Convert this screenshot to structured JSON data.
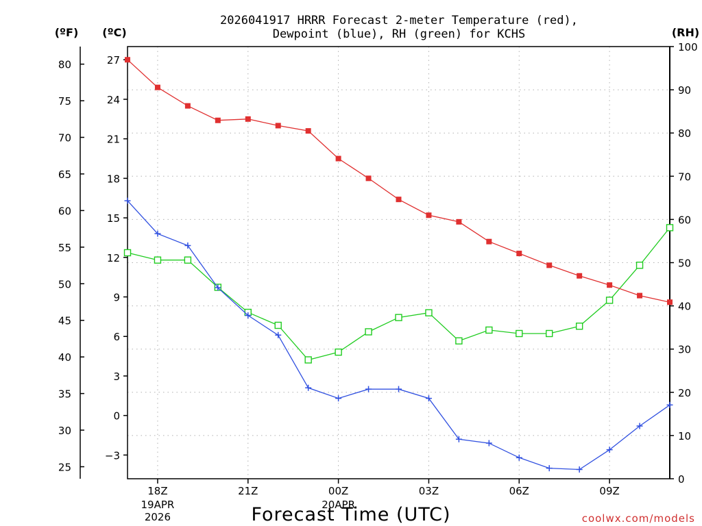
{
  "chart_data": {
    "type": "line",
    "title_line1": "2026041917 HRRR Forecast 2-meter Temperature (red),",
    "title_line2": "Dewpoint (blue), RH (green) for KCHS",
    "xlabel": "Forecast Time (UTC)",
    "watermark": "coolwx.com/models",
    "axis_headers": {
      "fahrenheit": "(ºF)",
      "celsius": "(ºC)",
      "rh": "(RH)"
    },
    "x": [
      17,
      18,
      19,
      20,
      21,
      22,
      23,
      24,
      25,
      26,
      27,
      28,
      29,
      30,
      31,
      32,
      33,
      34,
      35
    ],
    "xlim": [
      17,
      35
    ],
    "x_ticks": [
      {
        "x": 18,
        "label": "18Z",
        "sub1": "19APR",
        "sub2": "2026"
      },
      {
        "x": 21,
        "label": "21Z",
        "sub1": "",
        "sub2": ""
      },
      {
        "x": 24,
        "label": "00Z",
        "sub1": "20APR",
        "sub2": ""
      },
      {
        "x": 27,
        "label": "03Z",
        "sub1": "",
        "sub2": ""
      },
      {
        "x": 30,
        "label": "06Z",
        "sub1": "",
        "sub2": ""
      },
      {
        "x": 33,
        "label": "09Z",
        "sub1": "",
        "sub2": ""
      }
    ],
    "ylim_celsius": [
      -4.8,
      28.0
    ],
    "ylim_rh": [
      0,
      100
    ],
    "celsius_ticks": [
      "27",
      "24",
      "21",
      "18",
      "15",
      "12",
      "9",
      "6",
      "3",
      "0",
      "−3"
    ],
    "celsius_tick_values": [
      27,
      24,
      21,
      18,
      15,
      12,
      9,
      6,
      3,
      0,
      -3
    ],
    "fahrenheit_ticks": [
      "80",
      "75",
      "70",
      "65",
      "60",
      "55",
      "50",
      "45",
      "40",
      "35",
      "30",
      "25"
    ],
    "fahrenheit_tick_values": [
      80,
      75,
      70,
      65,
      60,
      55,
      50,
      45,
      40,
      35,
      30,
      25
    ],
    "rh_ticks": [
      "100",
      "90",
      "80",
      "70",
      "60",
      "50",
      "40",
      "30",
      "20",
      "10",
      "0"
    ],
    "rh_tick_values": [
      100,
      90,
      80,
      70,
      60,
      50,
      40,
      30,
      20,
      10,
      0
    ],
    "series": [
      {
        "name": "Temperature",
        "axis": "celsius",
        "color": "#e03030",
        "marker": "square-filled",
        "values": [
          27.0,
          24.9,
          23.5,
          22.4,
          22.5,
          22.0,
          21.6,
          19.5,
          18.0,
          16.4,
          15.2,
          14.7,
          13.2,
          12.3,
          11.4,
          10.6,
          9.9,
          9.1,
          8.6
        ]
      },
      {
        "name": "Dewpoint",
        "axis": "celsius",
        "color": "#3050e0",
        "marker": "plus",
        "values": [
          16.3,
          13.8,
          12.9,
          9.7,
          7.6,
          6.1,
          2.1,
          1.3,
          2.0,
          2.0,
          1.3,
          -1.8,
          -2.1,
          -3.2,
          -4.0,
          -4.1,
          -2.6,
          -0.8,
          0.8
        ]
      },
      {
        "name": "RH",
        "axis": "rh",
        "color": "#20cc20",
        "marker": "square-open",
        "values": [
          52.3,
          50.6,
          50.6,
          44.3,
          38.5,
          35.5,
          27.5,
          29.3,
          34.0,
          37.3,
          38.4,
          31.9,
          34.4,
          33.6,
          33.6,
          35.3,
          41.3,
          49.4,
          58.1
        ]
      }
    ]
  }
}
